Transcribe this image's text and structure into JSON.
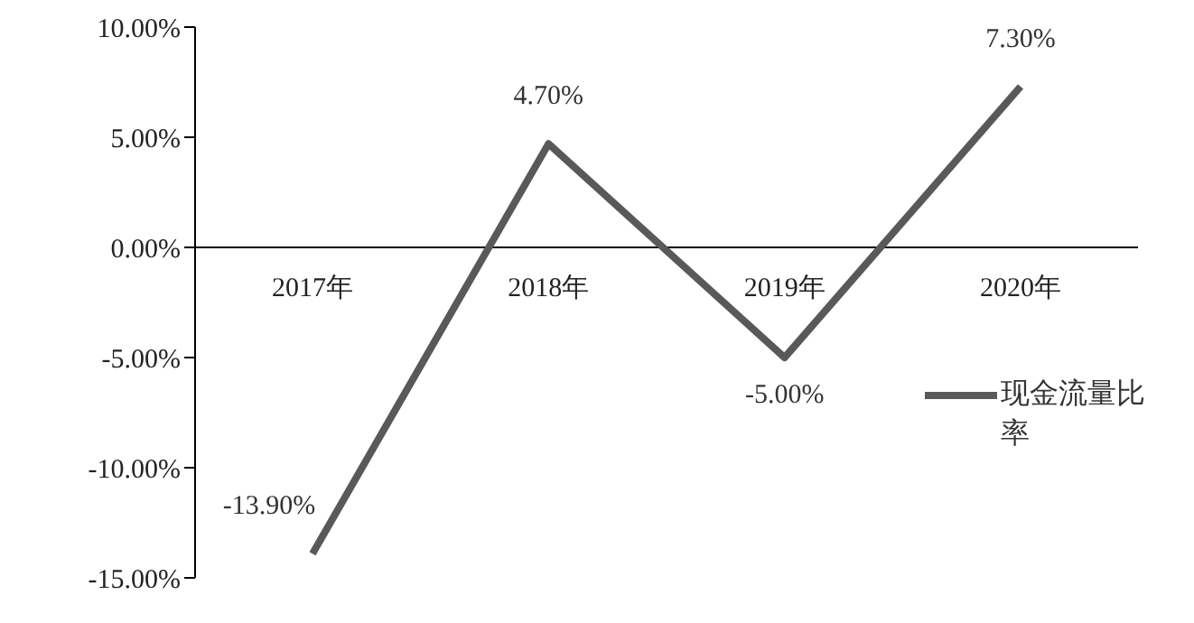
{
  "chart_data": {
    "type": "line",
    "categories": [
      "2017年",
      "2018年",
      "2019年",
      "2020年"
    ],
    "series": [
      {
        "name": "现金流量比率",
        "color": "#595959",
        "values": [
          -13.9,
          4.7,
          -5.0,
          7.3
        ],
        "value_labels": [
          "-13.90%",
          "4.70%",
          "-5.00%",
          "7.30%"
        ]
      }
    ],
    "ylim": [
      -15,
      10
    ],
    "yticks": [
      {
        "value": -15,
        "label": "-15.00%"
      },
      {
        "value": -10,
        "label": "-10.00%"
      },
      {
        "value": -5,
        "label": "-5.00%"
      },
      {
        "value": 0,
        "label": "0.00%"
      },
      {
        "value": 5,
        "label": "5.00%"
      },
      {
        "value": 10,
        "label": "10.00%"
      }
    ],
    "grid": false,
    "legend": "right",
    "marker": "none",
    "line_style": "solid"
  }
}
